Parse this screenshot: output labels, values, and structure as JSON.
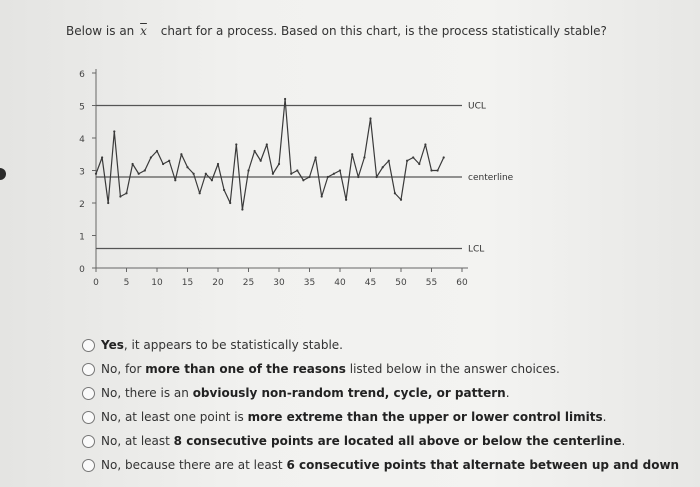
{
  "question": {
    "prefix": "Below is an",
    "xbar_symbol": "x",
    "suffix": "chart for a process. Based on this chart, is the process statistically stable?"
  },
  "chart_data": {
    "type": "line",
    "title": "",
    "xlabel": "",
    "ylabel": "",
    "xlim": [
      0,
      60
    ],
    "ylim": [
      0,
      6
    ],
    "xticks": [
      0,
      5,
      10,
      15,
      20,
      25,
      30,
      35,
      40,
      45,
      50,
      55,
      60
    ],
    "yticks": [
      0,
      1,
      2,
      3,
      4,
      5,
      6
    ],
    "reference_lines": [
      {
        "label": "UCL",
        "y": 5.0
      },
      {
        "label": "centerline",
        "y": 2.8
      },
      {
        "label": "LCL",
        "y": 0.6
      }
    ],
    "series": [
      {
        "x": [
          0,
          1,
          2,
          3,
          4,
          5,
          6,
          7,
          8,
          9,
          10,
          11,
          12,
          13,
          14,
          15,
          16,
          17,
          18,
          19,
          20,
          21,
          22,
          23,
          24,
          25,
          26,
          27,
          28,
          29,
          30,
          31,
          32,
          33,
          34,
          35,
          36,
          37,
          38,
          39,
          40,
          41,
          42,
          43,
          44,
          45,
          46,
          47,
          48,
          49,
          50,
          51,
          52,
          53,
          54,
          55,
          56,
          57
        ],
        "y": [
          2.9,
          3.4,
          2.0,
          4.2,
          2.2,
          2.3,
          3.2,
          2.9,
          3.0,
          3.4,
          3.6,
          3.2,
          3.3,
          2.7,
          3.5,
          3.1,
          2.9,
          2.3,
          2.9,
          2.7,
          3.2,
          2.4,
          2.0,
          3.8,
          1.8,
          3.0,
          3.6,
          3.3,
          3.8,
          2.9,
          3.2,
          5.2,
          2.9,
          3.0,
          2.7,
          2.8,
          3.4,
          2.2,
          2.8,
          2.9,
          3.0,
          2.1,
          3.5,
          2.8,
          3.4,
          4.6,
          2.8,
          3.1,
          3.3,
          2.3,
          2.1,
          3.3,
          3.4,
          3.2,
          3.8,
          3.0,
          3.0,
          3.4
        ]
      }
    ],
    "grid": false,
    "legend": "none"
  },
  "answers": [
    {
      "parts": [
        {
          "text": "Yes",
          "bold": true
        },
        {
          "text": ", it appears to be statistically stable.",
          "bold": false
        }
      ]
    },
    {
      "parts": [
        {
          "text": "No, for ",
          "bold": false
        },
        {
          "text": "more than one of the reasons",
          "bold": true
        },
        {
          "text": " listed below in the answer choices.",
          "bold": false
        }
      ]
    },
    {
      "parts": [
        {
          "text": "No, there is an ",
          "bold": false
        },
        {
          "text": "obviously non-random trend, cycle, or pattern",
          "bold": true
        },
        {
          "text": ".",
          "bold": false
        }
      ]
    },
    {
      "parts": [
        {
          "text": "No, at least one point is ",
          "bold": false
        },
        {
          "text": "more extreme than the upper or lower control limits",
          "bold": true
        },
        {
          "text": ".",
          "bold": false
        }
      ]
    },
    {
      "parts": [
        {
          "text": "No, at least ",
          "bold": false
        },
        {
          "text": "8 consecutive points are located all above or below the centerline",
          "bold": true
        },
        {
          "text": ".",
          "bold": false
        }
      ]
    },
    {
      "parts": [
        {
          "text": "No, because there are at least ",
          "bold": false
        },
        {
          "text": "6 consecutive points that alternate between up and down",
          "bold": true
        },
        {
          "text": "",
          "bold": false
        }
      ]
    }
  ],
  "colors": {
    "line": "#3a3a3a",
    "reference": "#555555",
    "text": "#333333"
  }
}
